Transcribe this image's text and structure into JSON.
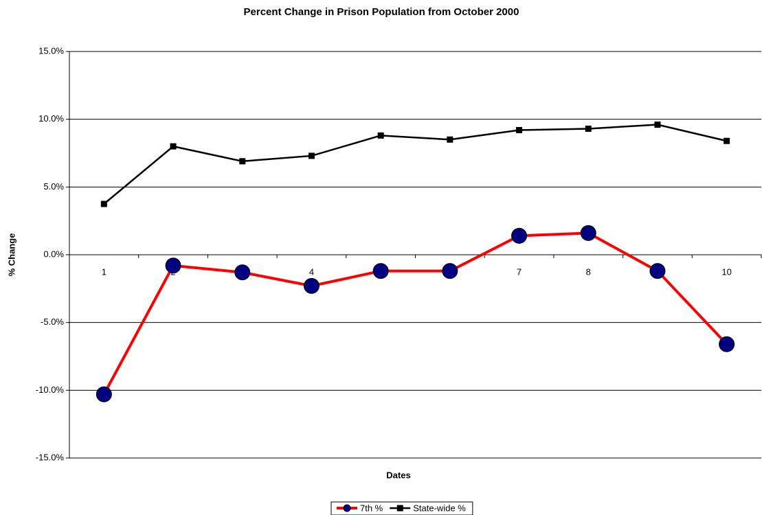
{
  "chart_data": {
    "type": "line",
    "title": "Percent Change in Prison Population from October 2000",
    "x_label": "Dates",
    "y_label": "% Change",
    "categories": [
      "1",
      "2",
      "3",
      "4",
      "5",
      "6",
      "7",
      "8",
      "9",
      "10"
    ],
    "series": [
      {
        "name": "7th %",
        "color": "#ff0000",
        "marker_color": "#000080",
        "values": [
          -10.3,
          -0.8,
          -1.3,
          -2.3,
          -1.2,
          -1.2,
          1.4,
          1.6,
          -1.2,
          -6.6
        ]
      },
      {
        "name": "State-wide %",
        "color": "#000000",
        "marker_color": "#000000",
        "values": [
          3.75,
          8.0,
          6.9,
          7.3,
          8.8,
          8.5,
          9.2,
          9.3,
          9.6,
          8.4
        ]
      }
    ],
    "ylim": [
      -15,
      15
    ],
    "yticks": [
      {
        "value": -15,
        "label": "-15.0%"
      },
      {
        "value": -10,
        "label": "-10.0%"
      },
      {
        "value": -5,
        "label": "-5.0%"
      },
      {
        "value": 0,
        "label": "0.0%"
      },
      {
        "value": 5,
        "label": "5.0%"
      },
      {
        "value": 10,
        "label": "10.0%"
      },
      {
        "value": 15,
        "label": "15.0%"
      }
    ],
    "grid": true,
    "legend": "bottom"
  }
}
